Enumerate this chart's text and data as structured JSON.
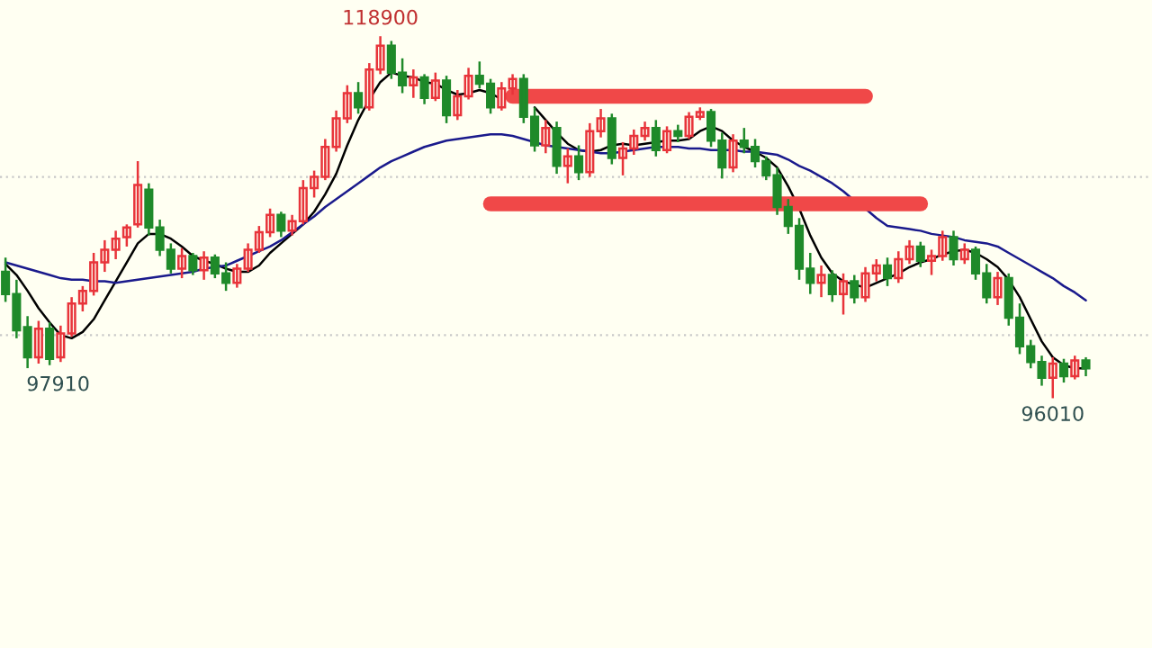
{
  "chart_data": {
    "type": "candlestick",
    "categories": [
      null,
      null,
      null,
      null,
      null,
      null,
      null,
      null,
      null,
      null,
      null,
      null,
      null,
      null,
      null,
      null,
      null,
      null,
      null,
      null,
      null,
      null,
      null,
      null,
      null,
      null,
      null,
      null,
      null,
      null,
      null,
      null,
      null,
      null,
      null,
      null,
      null,
      null,
      null,
      null,
      null,
      null,
      null,
      null,
      null,
      null,
      null,
      null,
      null,
      null,
      null,
      null,
      null,
      null,
      null,
      null,
      null,
      null,
      null,
      null,
      null,
      null,
      null,
      null,
      null,
      null,
      null,
      null,
      null,
      null,
      null,
      null,
      null,
      null,
      null,
      null,
      null,
      null,
      null,
      null,
      null,
      null,
      null,
      null,
      null,
      null,
      null,
      null,
      null,
      null,
      null,
      null,
      null,
      null,
      null,
      null,
      null,
      null,
      null
    ],
    "ohlc": [
      [
        104000,
        104900,
        102100,
        102600
      ],
      [
        102600,
        103500,
        99800,
        100300
      ],
      [
        100500,
        101200,
        97910,
        98600
      ],
      [
        98600,
        100900,
        98200,
        100400
      ],
      [
        100400,
        100800,
        98100,
        98500
      ],
      [
        98600,
        100600,
        98300,
        100100
      ],
      [
        100100,
        102400,
        99900,
        102000
      ],
      [
        102000,
        103100,
        101500,
        102800
      ],
      [
        102800,
        105200,
        102500,
        104600
      ],
      [
        104600,
        106000,
        104000,
        105400
      ],
      [
        105400,
        106600,
        104800,
        106100
      ],
      [
        106200,
        107000,
        105600,
        106800
      ],
      [
        107000,
        111000,
        106800,
        109500
      ],
      [
        109200,
        109600,
        106300,
        106800
      ],
      [
        106800,
        107300,
        105000,
        105400
      ],
      [
        105400,
        105800,
        103900,
        104200
      ],
      [
        104200,
        105500,
        103600,
        105000
      ],
      [
        105000,
        105200,
        103800,
        104100
      ],
      [
        104100,
        105300,
        103500,
        104900
      ],
      [
        104900,
        105100,
        103600,
        103900
      ],
      [
        103900,
        104600,
        102800,
        103300
      ],
      [
        103300,
        104500,
        103000,
        104200
      ],
      [
        104200,
        105800,
        104000,
        105400
      ],
      [
        105400,
        106900,
        105200,
        106500
      ],
      [
        106500,
        108000,
        106200,
        107600
      ],
      [
        107600,
        107800,
        106200,
        106600
      ],
      [
        106600,
        107600,
        106300,
        107200
      ],
      [
        107200,
        109800,
        107000,
        109300
      ],
      [
        109300,
        110400,
        108700,
        110000
      ],
      [
        110000,
        112400,
        109800,
        111900
      ],
      [
        111900,
        114200,
        111600,
        113700
      ],
      [
        113700,
        115800,
        113400,
        115300
      ],
      [
        115300,
        116000,
        114000,
        114400
      ],
      [
        114400,
        117200,
        114200,
        116800
      ],
      [
        116800,
        118900,
        116500,
        118300
      ],
      [
        118300,
        118600,
        116200,
        116600
      ],
      [
        116600,
        117500,
        115300,
        115800
      ],
      [
        115800,
        116800,
        115000,
        116300
      ],
      [
        116300,
        116500,
        114600,
        115000
      ],
      [
        115000,
        116600,
        114800,
        116100
      ],
      [
        116100,
        116400,
        113400,
        113900
      ],
      [
        113900,
        115500,
        113600,
        115100
      ],
      [
        115100,
        116900,
        114900,
        116400
      ],
      [
        116400,
        117300,
        115600,
        115900
      ],
      [
        115900,
        116200,
        114000,
        114400
      ],
      [
        114400,
        116000,
        114200,
        115600
      ],
      [
        115600,
        116500,
        115200,
        116200
      ],
      [
        116200,
        116500,
        113400,
        113800
      ],
      [
        113800,
        114400,
        111600,
        112000
      ],
      [
        112000,
        113600,
        111500,
        113100
      ],
      [
        113100,
        113500,
        110200,
        110700
      ],
      [
        110700,
        111800,
        109600,
        111300
      ],
      [
        111300,
        112000,
        109800,
        110300
      ],
      [
        110300,
        113400,
        110000,
        112900
      ],
      [
        112900,
        114300,
        112500,
        113700
      ],
      [
        113700,
        114000,
        110800,
        111200
      ],
      [
        111200,
        112200,
        110100,
        111800
      ],
      [
        111800,
        113000,
        111400,
        112600
      ],
      [
        112600,
        113500,
        112300,
        113100
      ],
      [
        113100,
        113600,
        111300,
        111700
      ],
      [
        111700,
        113200,
        111500,
        112900
      ],
      [
        112900,
        113300,
        112200,
        112600
      ],
      [
        112600,
        114100,
        112400,
        113800
      ],
      [
        113800,
        114400,
        113600,
        114100
      ],
      [
        114100,
        114300,
        111900,
        112300
      ],
      [
        112300,
        112800,
        109900,
        110600
      ],
      [
        110600,
        112700,
        110300,
        112300
      ],
      [
        112300,
        113100,
        111500,
        111900
      ],
      [
        111900,
        112400,
        110600,
        111000
      ],
      [
        111000,
        111300,
        109800,
        110100
      ],
      [
        110100,
        110600,
        107600,
        108100
      ],
      [
        108100,
        108600,
        106400,
        106900
      ],
      [
        106900,
        107400,
        103500,
        104200
      ],
      [
        104200,
        105200,
        102600,
        103300
      ],
      [
        103300,
        104400,
        102400,
        103800
      ],
      [
        103800,
        104100,
        102100,
        102600
      ],
      [
        102600,
        103900,
        101300,
        103400
      ],
      [
        103400,
        103800,
        102000,
        102400
      ],
      [
        102400,
        104300,
        102100,
        103900
      ],
      [
        103900,
        104800,
        103400,
        104400
      ],
      [
        104400,
        104900,
        103100,
        103600
      ],
      [
        103600,
        105300,
        103300,
        104800
      ],
      [
        104800,
        106000,
        104500,
        105600
      ],
      [
        105600,
        105900,
        104300,
        104700
      ],
      [
        104700,
        105400,
        103800,
        105000
      ],
      [
        105000,
        106600,
        104700,
        106200
      ],
      [
        106200,
        106600,
        104400,
        104800
      ],
      [
        104800,
        105800,
        104500,
        105400
      ],
      [
        105400,
        105600,
        103500,
        103900
      ],
      [
        103900,
        104500,
        102000,
        102400
      ],
      [
        102400,
        104000,
        101900,
        103600
      ],
      [
        103600,
        103900,
        100600,
        101100
      ],
      [
        101100,
        102000,
        98800,
        99300
      ],
      [
        99300,
        99700,
        97900,
        98300
      ],
      [
        98300,
        98700,
        96800,
        97300
      ],
      [
        97300,
        98600,
        96010,
        98200
      ],
      [
        98200,
        98500,
        97000,
        97400
      ],
      [
        97400,
        98700,
        97200,
        98400
      ],
      [
        98400,
        98600,
        97400,
        97900
      ]
    ],
    "colors": [
      "#1f8a2a",
      "#1f8a2a",
      "#1f8a2a",
      "#e8343a",
      "#1f8a2a",
      "#e8343a",
      "#e8343a",
      "#e8343a",
      "#e8343a",
      "#e8343a",
      "#e8343a",
      "#e8343a",
      "#e8343a",
      "#1f8a2a",
      "#1f8a2a",
      "#1f8a2a",
      "#e8343a",
      "#1f8a2a",
      "#e8343a",
      "#1f8a2a",
      "#1f8a2a",
      "#e8343a",
      "#e8343a",
      "#e8343a",
      "#e8343a",
      "#1f8a2a",
      "#e8343a",
      "#e8343a",
      "#e8343a",
      "#e8343a",
      "#e8343a",
      "#e8343a",
      "#1f8a2a",
      "#e8343a",
      "#e8343a",
      "#1f8a2a",
      "#1f8a2a",
      "#e8343a",
      "#1f8a2a",
      "#e8343a",
      "#1f8a2a",
      "#e8343a",
      "#e8343a",
      "#1f8a2a",
      "#1f8a2a",
      "#e8343a",
      "#e8343a",
      "#1f8a2a",
      "#1f8a2a",
      "#e8343a",
      "#1f8a2a",
      "#e8343a",
      "#1f8a2a",
      "#e8343a",
      "#e8343a",
      "#1f8a2a",
      "#e8343a",
      "#e8343a",
      "#e8343a",
      "#1f8a2a",
      "#e8343a",
      "#1f8a2a",
      "#e8343a",
      "#e8343a",
      "#1f8a2a",
      "#1f8a2a",
      "#e8343a",
      "#1f8a2a",
      "#1f8a2a",
      "#1f8a2a",
      "#1f8a2a",
      "#1f8a2a",
      "#1f8a2a",
      "#1f8a2a",
      "#e8343a",
      "#1f8a2a",
      "#e8343a",
      "#1f8a2a",
      "#e8343a",
      "#e8343a",
      "#1f8a2a",
      "#e8343a",
      "#e8343a",
      "#1f8a2a",
      "#e8343a",
      "#e8343a",
      "#1f8a2a",
      "#e8343a",
      "#1f8a2a",
      "#1f8a2a",
      "#e8343a",
      "#1f8a2a",
      "#1f8a2a",
      "#1f8a2a",
      "#1f8a2a",
      "#e8343a",
      "#1f8a2a",
      "#e8343a",
      "#1f8a2a"
    ],
    "series": [
      {
        "type": "line",
        "color": "#000000",
        "values": [
          104500,
          103800,
          102800,
          101700,
          100800,
          100000,
          99800,
          100200,
          101000,
          102200,
          103400,
          104600,
          105800,
          106400,
          106400,
          106100,
          105600,
          105000,
          104700,
          104500,
          104200,
          104000,
          104000,
          104400,
          105200,
          105800,
          106400,
          107000,
          107800,
          108900,
          110200,
          112000,
          113600,
          114900,
          116000,
          116600,
          116400,
          116300,
          116000,
          115900,
          115500,
          115200,
          115300,
          115500,
          115300,
          114900,
          null,
          null,
          114400,
          113600,
          112800,
          112100,
          111700,
          111600,
          111700,
          112000,
          112100,
          112000,
          112100,
          112200,
          112300,
          112300,
          112400,
          112900,
          113200,
          112900,
          112300,
          111900,
          111600,
          111200,
          110600,
          109400,
          108000,
          106300,
          104900,
          103900,
          103400,
          103200,
          103000,
          103300,
          103600,
          103900,
          104300,
          104600,
          104800,
          105100,
          105300,
          105400,
          105200,
          104800,
          104300,
          103500,
          102400,
          101000,
          99600,
          98600,
          98100,
          97900,
          97900
        ]
      },
      {
        "type": "line",
        "color": "#1a1a8c",
        "values": [
          104600,
          104400,
          104200,
          104000,
          103800,
          103600,
          103500,
          103500,
          103400,
          103400,
          103300,
          103400,
          103500,
          103600,
          103700,
          103800,
          103900,
          104000,
          104200,
          104300,
          104400,
          104700,
          105000,
          105300,
          105600,
          106000,
          106500,
          107000,
          107500,
          108100,
          108600,
          109100,
          109600,
          110100,
          110600,
          111000,
          111300,
          111600,
          111900,
          112100,
          112300,
          112400,
          112500,
          112600,
          112700,
          112700,
          112600,
          112400,
          112200,
          112000,
          111900,
          111800,
          111700,
          111600,
          111500,
          111500,
          111600,
          111700,
          111800,
          111900,
          111900,
          111900,
          111800,
          111800,
          111700,
          111700,
          111700,
          111600,
          111600,
          111500,
          111400,
          111100,
          110700,
          110400,
          110000,
          109600,
          109100,
          108500,
          108000,
          107400,
          106900,
          106800,
          106700,
          106600,
          106400,
          106300,
          106200,
          106000,
          105900,
          105800,
          105600,
          105200,
          104800,
          104400,
          104000,
          103600,
          103100,
          102700,
          102200
        ]
      },
      {
        "type": "line",
        "color": "#f04848",
        "values": [
          null,
          null,
          null,
          null,
          null,
          null,
          null,
          null,
          null,
          null,
          null,
          null,
          null,
          null,
          null,
          null,
          null,
          null,
          null,
          null,
          null,
          null,
          null,
          null,
          null,
          null,
          null,
          null,
          null,
          null,
          null,
          null,
          null,
          null,
          null,
          null,
          null,
          null,
          null,
          null,
          null,
          null,
          null,
          null,
          null,
          null,
          115100,
          115100,
          115100,
          115100,
          115100,
          115100,
          115100,
          115100,
          115100,
          115100,
          115100,
          115100,
          115100,
          115100,
          115100,
          115100,
          115100,
          115100,
          115100,
          115100,
          115100,
          115100,
          115100,
          115100,
          115100,
          115100,
          115100,
          115100,
          115100,
          115100,
          115100,
          115100,
          115100,
          null,
          null,
          null,
          null,
          null,
          null,
          null,
          null,
          null,
          null,
          null,
          null,
          null,
          null,
          null,
          null,
          null,
          null,
          null,
          null
        ]
      },
      {
        "type": "line",
        "color": "#f04848",
        "values": [
          null,
          null,
          null,
          null,
          null,
          null,
          null,
          null,
          null,
          null,
          null,
          null,
          null,
          null,
          null,
          null,
          null,
          null,
          null,
          null,
          null,
          null,
          null,
          null,
          null,
          null,
          null,
          null,
          null,
          null,
          null,
          null,
          null,
          null,
          null,
          null,
          null,
          null,
          null,
          null,
          null,
          null,
          null,
          null,
          108300,
          108300,
          108300,
          108300,
          108300,
          108300,
          108300,
          108300,
          108300,
          108300,
          108300,
          108300,
          108300,
          108300,
          108300,
          108300,
          108300,
          108300,
          108300,
          108300,
          108300,
          108300,
          108300,
          108300,
          108300,
          108300,
          108300,
          108300,
          108300,
          108300,
          108300,
          108300,
          108300,
          108300,
          108300,
          108300,
          108300,
          108300,
          108300,
          108300,
          null,
          null,
          null,
          null,
          null,
          null,
          null,
          null,
          null,
          null,
          null,
          null,
          null,
          null,
          null
        ]
      }
    ],
    "annotations": [
      {
        "text": "118900",
        "y": 118900
      },
      {
        "text": "97910",
        "y": 97910
      },
      {
        "text": "96010",
        "y": 96010
      }
    ],
    "yticks": [
      {
        "value": 100000,
        "label": null
      },
      {
        "value": 110000,
        "label": null
      }
    ],
    "grid": "y"
  }
}
